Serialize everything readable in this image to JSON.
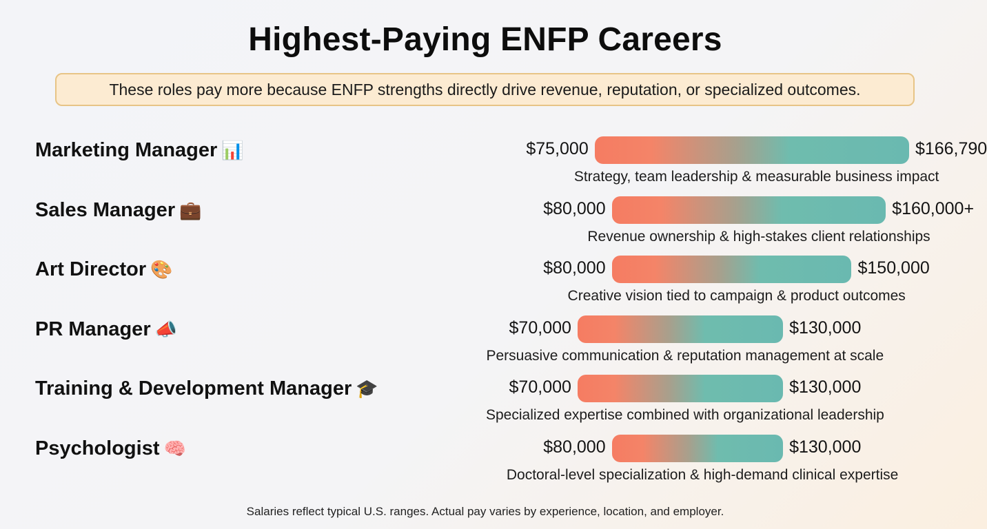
{
  "title": "Highest-Paying ENFP Careers",
  "subtitle": "These roles pay more because ENFP strengths directly drive revenue, reputation, or specialized outcomes.",
  "footnote": "Salaries reflect typical U.S. ranges. Actual pay varies by experience, location, and employer.",
  "colors": {
    "bar_low": "#f57c62",
    "bar_high": "#6ab9b0",
    "subtitle_bg": "#fcebd2",
    "subtitle_border": "#e7c486"
  },
  "chart_data": {
    "type": "bar",
    "orientation": "horizontal-range",
    "title": "Highest-Paying ENFP Careers",
    "categories": [
      "Marketing Manager",
      "Sales Manager",
      "Art Director",
      "PR Manager",
      "Training & Development Manager",
      "Psychologist"
    ],
    "series": [
      {
        "name": "min",
        "values": [
          75000,
          80000,
          80000,
          70000,
          70000,
          80000
        ]
      },
      {
        "name": "max",
        "values": [
          166790,
          160000,
          150000,
          130000,
          130000,
          130000
        ]
      }
    ],
    "rows": [
      {
        "role": "Marketing Manager",
        "icon": "bar-chart-icon",
        "emoji": "📊",
        "min": 75000,
        "max": 166790,
        "min_label": "$75,000",
        "max_label": "$166,790",
        "description": "Strategy, team leadership & measurable business impact"
      },
      {
        "role": "Sales Manager",
        "icon": "briefcase-icon",
        "emoji": "💼",
        "min": 80000,
        "max": 160000,
        "min_label": "$80,000",
        "max_label": "$160,000+",
        "description": "Revenue ownership & high-stakes client relationships"
      },
      {
        "role": "Art Director",
        "icon": "palette-icon",
        "emoji": "🎨",
        "min": 80000,
        "max": 150000,
        "min_label": "$80,000",
        "max_label": "$150,000",
        "description": "Creative vision tied to campaign & product outcomes"
      },
      {
        "role": "PR Manager",
        "icon": "megaphone-icon",
        "emoji": "📣",
        "min": 70000,
        "max": 130000,
        "min_label": "$70,000",
        "max_label": "$130,000",
        "description": "Persuasive communication & reputation management at scale"
      },
      {
        "role": "Training & Development Manager",
        "icon": "graduation-cap-icon",
        "emoji": "🎓",
        "min": 70000,
        "max": 130000,
        "min_label": "$70,000",
        "max_label": "$130,000",
        "description": "Specialized expertise combined with organizational leadership"
      },
      {
        "role": "Psychologist",
        "icon": "brain-icon",
        "emoji": "🧠",
        "min": 80000,
        "max": 130000,
        "min_label": "$80,000",
        "max_label": "$130,000",
        "description": "Doctoral-level specialization & high-demand clinical expertise"
      }
    ]
  }
}
